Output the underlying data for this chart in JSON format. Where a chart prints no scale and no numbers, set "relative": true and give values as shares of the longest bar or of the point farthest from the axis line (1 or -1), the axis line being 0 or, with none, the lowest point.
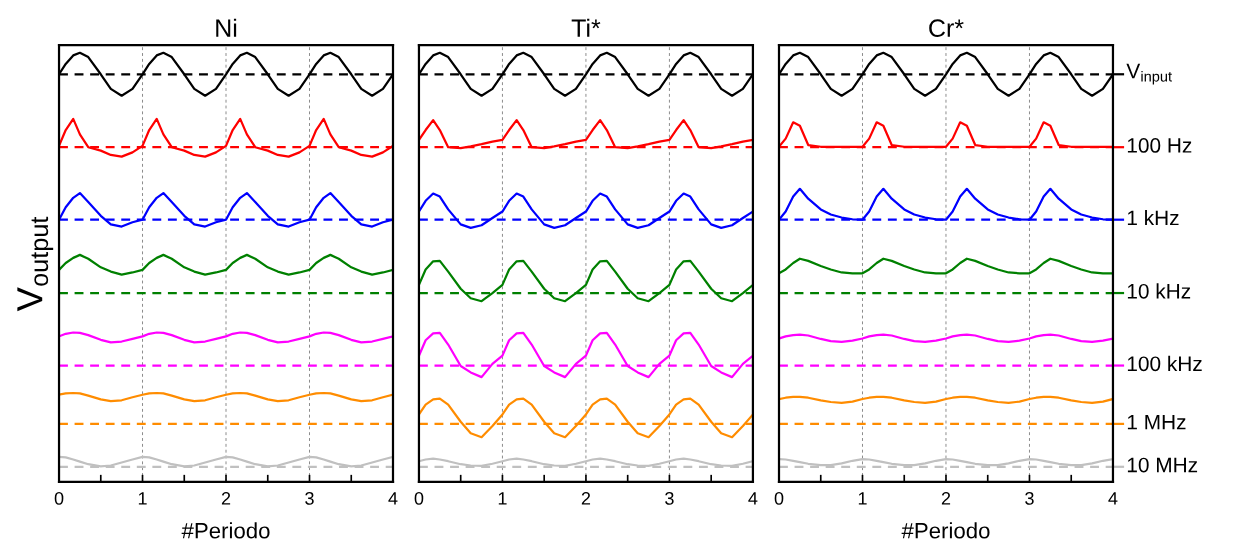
{
  "chart_data": [
    {
      "type": "line",
      "title": "Ni",
      "xlabel": "#Periodo",
      "ylabel": "V$_{output}$",
      "relative": true,
      "grid": "x",
      "tick_labels": "x",
      "line_style": "solid",
      "marker": "none",
      "xlim": [
        0,
        4
      ],
      "xticks": [
        0,
        {
          "value": 0.5,
          "label": null
        },
        1,
        {
          "value": 1.5,
          "label": null
        },
        2,
        {
          "value": 2.5,
          "label": null
        },
        3,
        {
          "value": 3.5,
          "label": null
        },
        4
      ],
      "x": [
        0,
        0.08,
        0.17,
        0.25,
        0.35,
        0.5,
        0.62,
        0.75,
        0.88,
        1,
        1.08,
        1.17,
        1.25,
        1.35,
        1.5,
        1.62,
        1.75,
        1.88,
        2,
        2.08,
        2.17,
        2.25,
        2.35,
        2.5,
        2.62,
        2.75,
        2.88,
        3,
        3.08,
        3.17,
        3.25,
        3.35,
        3.5,
        3.62,
        3.75,
        3.88,
        4
      ],
      "series": [
        {
          "color": "#000000",
          "values": [
            0.95,
            0.974,
            0.994,
            1.0,
            0.99,
            0.95,
            0.916,
            0.9,
            0.916,
            0.95,
            0.974,
            0.994,
            1.0,
            0.99,
            0.95,
            0.916,
            0.9,
            0.916,
            0.95,
            0.974,
            0.994,
            1.0,
            0.99,
            0.95,
            0.916,
            0.9,
            0.916,
            0.95,
            0.974,
            0.994,
            1.0,
            0.99,
            0.95,
            0.916,
            0.9,
            0.916,
            0.95
          ]
        },
        {
          "color": "#ff0000",
          "values": [
            0.783,
            0.82,
            0.846,
            0.81,
            0.78,
            0.772,
            0.762,
            0.758,
            0.768,
            0.783,
            0.82,
            0.846,
            0.81,
            0.78,
            0.772,
            0.762,
            0.758,
            0.768,
            0.783,
            0.82,
            0.846,
            0.81,
            0.78,
            0.772,
            0.762,
            0.758,
            0.768,
            0.783,
            0.82,
            0.846,
            0.81,
            0.78,
            0.772,
            0.762,
            0.758,
            0.768,
            0.783
          ]
        },
        {
          "color": "#0000ff",
          "values": [
            0.611,
            0.64,
            0.662,
            0.673,
            0.652,
            0.62,
            0.6,
            0.595,
            0.605,
            0.611,
            0.64,
            0.662,
            0.673,
            0.652,
            0.62,
            0.6,
            0.595,
            0.605,
            0.611,
            0.64,
            0.662,
            0.673,
            0.652,
            0.62,
            0.6,
            0.595,
            0.605,
            0.611,
            0.64,
            0.662,
            0.673,
            0.652,
            0.62,
            0.6,
            0.595,
            0.605,
            0.611
          ]
        },
        {
          "color": "#008000",
          "values": [
            0.494,
            0.51,
            0.522,
            0.529,
            0.52,
            0.5,
            0.49,
            0.483,
            0.488,
            0.494,
            0.51,
            0.522,
            0.529,
            0.52,
            0.5,
            0.49,
            0.483,
            0.488,
            0.494,
            0.51,
            0.522,
            0.529,
            0.52,
            0.5,
            0.49,
            0.483,
            0.488,
            0.494,
            0.51,
            0.522,
            0.529,
            0.52,
            0.5,
            0.49,
            0.483,
            0.488,
            0.494
          ]
        },
        {
          "color": "#ff00ff",
          "values": [
            0.339,
            0.345,
            0.348,
            0.347,
            0.342,
            0.331,
            0.325,
            0.327,
            0.333,
            0.339,
            0.345,
            0.348,
            0.347,
            0.342,
            0.331,
            0.325,
            0.327,
            0.333,
            0.339,
            0.345,
            0.348,
            0.347,
            0.342,
            0.331,
            0.325,
            0.327,
            0.333,
            0.339,
            0.345,
            0.348,
            0.347,
            0.342,
            0.331,
            0.325,
            0.327,
            0.333,
            0.339
          ]
        },
        {
          "color": "#ff8c00",
          "values": [
            0.203,
            0.206,
            0.207,
            0.206,
            0.201,
            0.192,
            0.188,
            0.19,
            0.197,
            0.203,
            0.206,
            0.207,
            0.206,
            0.201,
            0.192,
            0.188,
            0.19,
            0.197,
            0.203,
            0.206,
            0.207,
            0.206,
            0.201,
            0.192,
            0.188,
            0.19,
            0.197,
            0.203,
            0.206,
            0.207,
            0.206,
            0.201,
            0.192,
            0.188,
            0.19,
            0.197,
            0.203
          ]
        },
        {
          "color": "#c0c0c0",
          "values": [
            0.058,
            0.057,
            0.052,
            0.047,
            0.041,
            0.036,
            0.038,
            0.045,
            0.052,
            0.058,
            0.057,
            0.052,
            0.047,
            0.041,
            0.036,
            0.038,
            0.045,
            0.052,
            0.058,
            0.057,
            0.052,
            0.047,
            0.041,
            0.036,
            0.038,
            0.045,
            0.052,
            0.058,
            0.057,
            0.052,
            0.047,
            0.041,
            0.036,
            0.038,
            0.045,
            0.052,
            0.058
          ]
        }
      ],
      "ref_lines": [
        {
          "axis": "y",
          "value": 0.95,
          "color": "#000000",
          "line_style": "dashed"
        },
        {
          "axis": "y",
          "value": 0.78,
          "color": "#ff0000",
          "line_style": "dashed"
        },
        {
          "axis": "y",
          "value": 0.611,
          "color": "#0000ff",
          "line_style": "dashed"
        },
        {
          "axis": "y",
          "value": 0.44,
          "color": "#008000",
          "line_style": "dashed"
        },
        {
          "axis": "y",
          "value": 0.271,
          "color": "#ff00ff",
          "line_style": "dashed"
        },
        {
          "axis": "y",
          "value": 0.135,
          "color": "#ff8c00",
          "line_style": "dashed"
        },
        {
          "axis": "y",
          "value": 0.035,
          "color": "#c0c0c0",
          "line_style": "dashed"
        }
      ]
    },
    {
      "type": "line",
      "title": "Ti*",
      "relative": true,
      "grid": "x",
      "tick_labels": "x",
      "line_style": "solid",
      "marker": "none",
      "xlim": [
        0,
        4
      ],
      "xticks": [
        0,
        {
          "value": 0.5,
          "label": null
        },
        1,
        {
          "value": 1.5,
          "label": null
        },
        2,
        {
          "value": 2.5,
          "label": null
        },
        3,
        {
          "value": 3.5,
          "label": null
        },
        4
      ],
      "x": [
        0,
        0.08,
        0.17,
        0.25,
        0.35,
        0.5,
        0.62,
        0.75,
        0.88,
        1,
        1.08,
        1.17,
        1.25,
        1.35,
        1.5,
        1.62,
        1.75,
        1.88,
        2,
        2.08,
        2.17,
        2.25,
        2.35,
        2.5,
        2.62,
        2.75,
        2.88,
        3,
        3.08,
        3.17,
        3.25,
        3.35,
        3.5,
        3.62,
        3.75,
        3.88,
        4
      ],
      "series": [
        {
          "color": "#000000",
          "values": [
            0.95,
            0.974,
            0.994,
            1.0,
            0.99,
            0.95,
            0.916,
            0.9,
            0.916,
            0.95,
            0.974,
            0.994,
            1.0,
            0.99,
            0.95,
            0.916,
            0.9,
            0.916,
            0.95,
            0.974,
            0.994,
            1.0,
            0.99,
            0.95,
            0.916,
            0.9,
            0.916,
            0.95,
            0.974,
            0.994,
            1.0,
            0.99,
            0.95,
            0.916,
            0.9,
            0.916,
            0.95
          ]
        },
        {
          "color": "#ff0000",
          "values": [
            0.797,
            0.82,
            0.843,
            0.82,
            0.78,
            0.778,
            0.782,
            0.787,
            0.793,
            0.797,
            0.82,
            0.843,
            0.82,
            0.78,
            0.778,
            0.782,
            0.787,
            0.793,
            0.797,
            0.82,
            0.843,
            0.82,
            0.78,
            0.778,
            0.782,
            0.787,
            0.793,
            0.797,
            0.82,
            0.843,
            0.82,
            0.78,
            0.778,
            0.782,
            0.787,
            0.793,
            0.797
          ]
        },
        {
          "color": "#0000ff",
          "values": [
            0.63,
            0.655,
            0.672,
            0.665,
            0.635,
            0.6,
            0.592,
            0.598,
            0.615,
            0.63,
            0.655,
            0.672,
            0.665,
            0.635,
            0.6,
            0.592,
            0.598,
            0.615,
            0.63,
            0.655,
            0.672,
            0.665,
            0.635,
            0.6,
            0.592,
            0.598,
            0.615,
            0.63,
            0.655,
            0.672,
            0.665,
            0.635,
            0.6,
            0.592,
            0.598,
            0.615,
            0.63
          ]
        },
        {
          "color": "#008000",
          "values": [
            0.459,
            0.495,
            0.514,
            0.515,
            0.49,
            0.45,
            0.428,
            0.421,
            0.44,
            0.459,
            0.495,
            0.514,
            0.515,
            0.49,
            0.45,
            0.428,
            0.421,
            0.44,
            0.459,
            0.495,
            0.514,
            0.515,
            0.49,
            0.45,
            0.428,
            0.421,
            0.44,
            0.459,
            0.495,
            0.514,
            0.515,
            0.49,
            0.45,
            0.428,
            0.421,
            0.44,
            0.459
          ]
        },
        {
          "color": "#ff00ff",
          "values": [
            0.294,
            0.33,
            0.346,
            0.347,
            0.32,
            0.27,
            0.255,
            0.244,
            0.275,
            0.294,
            0.33,
            0.346,
            0.347,
            0.32,
            0.27,
            0.255,
            0.244,
            0.275,
            0.294,
            0.33,
            0.346,
            0.347,
            0.32,
            0.27,
            0.255,
            0.244,
            0.275,
            0.294,
            0.33,
            0.346,
            0.347,
            0.32,
            0.27,
            0.255,
            0.244,
            0.275,
            0.294
          ]
        },
        {
          "color": "#ff8c00",
          "values": [
            0.157,
            0.18,
            0.192,
            0.194,
            0.18,
            0.14,
            0.113,
            0.104,
            0.13,
            0.157,
            0.18,
            0.192,
            0.194,
            0.18,
            0.14,
            0.113,
            0.104,
            0.13,
            0.157,
            0.18,
            0.192,
            0.194,
            0.18,
            0.14,
            0.113,
            0.104,
            0.13,
            0.157,
            0.18,
            0.192,
            0.194,
            0.18,
            0.14,
            0.113,
            0.104,
            0.13,
            0.157
          ]
        },
        {
          "color": "#c0c0c0",
          "values": [
            0.048,
            0.052,
            0.054,
            0.052,
            0.048,
            0.041,
            0.038,
            0.037,
            0.042,
            0.048,
            0.052,
            0.054,
            0.052,
            0.048,
            0.041,
            0.038,
            0.037,
            0.042,
            0.048,
            0.052,
            0.054,
            0.052,
            0.048,
            0.041,
            0.038,
            0.037,
            0.042,
            0.048,
            0.052,
            0.054,
            0.052,
            0.048,
            0.041,
            0.038,
            0.037,
            0.042,
            0.048
          ]
        }
      ],
      "ref_lines": [
        {
          "axis": "y",
          "value": 0.95,
          "color": "#000000",
          "line_style": "dashed"
        },
        {
          "axis": "y",
          "value": 0.78,
          "color": "#ff0000",
          "line_style": "dashed"
        },
        {
          "axis": "y",
          "value": 0.611,
          "color": "#0000ff",
          "line_style": "dashed"
        },
        {
          "axis": "y",
          "value": 0.44,
          "color": "#008000",
          "line_style": "dashed"
        },
        {
          "axis": "y",
          "value": 0.271,
          "color": "#ff00ff",
          "line_style": "dashed"
        },
        {
          "axis": "y",
          "value": 0.135,
          "color": "#ff8c00",
          "line_style": "dashed"
        },
        {
          "axis": "y",
          "value": 0.035,
          "color": "#c0c0c0",
          "line_style": "dashed"
        }
      ]
    },
    {
      "type": "line",
      "title": "Cr*",
      "xlabel": "#Periodo",
      "relative": true,
      "legend": "right",
      "grid": "x",
      "tick_labels": "x",
      "line_style": "solid",
      "marker": "none",
      "xlim": [
        0,
        4
      ],
      "xticks": [
        0,
        {
          "value": 0.5,
          "label": null
        },
        1,
        {
          "value": 1.5,
          "label": null
        },
        2,
        {
          "value": 2.5,
          "label": null
        },
        3,
        {
          "value": 3.5,
          "label": null
        },
        4
      ],
      "x": [
        0,
        0.08,
        0.17,
        0.25,
        0.35,
        0.5,
        0.62,
        0.75,
        0.88,
        1,
        1.08,
        1.17,
        1.25,
        1.35,
        1.5,
        1.62,
        1.75,
        1.88,
        2,
        2.08,
        2.17,
        2.25,
        2.35,
        2.5,
        2.62,
        2.75,
        2.88,
        3,
        3.08,
        3.17,
        3.25,
        3.35,
        3.5,
        3.62,
        3.75,
        3.88,
        4
      ],
      "series": [
        {
          "name": "V$_{input}$",
          "color": "#000000",
          "values": [
            0.95,
            0.974,
            0.994,
            1.0,
            0.99,
            0.95,
            0.916,
            0.9,
            0.916,
            0.95,
            0.974,
            0.994,
            1.0,
            0.99,
            0.95,
            0.916,
            0.9,
            0.916,
            0.95,
            0.974,
            0.994,
            1.0,
            0.99,
            0.95,
            0.916,
            0.9,
            0.916,
            0.95,
            0.974,
            0.994,
            1.0,
            0.99,
            0.95,
            0.916,
            0.9,
            0.916,
            0.95
          ]
        },
        {
          "name": "100 Hz",
          "color": "#ff0000",
          "values": [
            0.781,
            0.8,
            0.838,
            0.83,
            0.785,
            0.781,
            0.781,
            0.781,
            0.781,
            0.781,
            0.8,
            0.838,
            0.83,
            0.785,
            0.781,
            0.781,
            0.781,
            0.781,
            0.781,
            0.8,
            0.838,
            0.83,
            0.785,
            0.781,
            0.781,
            0.781,
            0.781,
            0.781,
            0.8,
            0.838,
            0.83,
            0.785,
            0.781,
            0.781,
            0.781,
            0.781,
            0.781
          ]
        },
        {
          "name": "1 kHz",
          "color": "#0000ff",
          "values": [
            0.611,
            0.63,
            0.665,
            0.683,
            0.66,
            0.635,
            0.623,
            0.616,
            0.612,
            0.611,
            0.63,
            0.665,
            0.683,
            0.66,
            0.635,
            0.623,
            0.616,
            0.612,
            0.611,
            0.63,
            0.665,
            0.683,
            0.66,
            0.635,
            0.623,
            0.616,
            0.612,
            0.611,
            0.63,
            0.665,
            0.683,
            0.66,
            0.635,
            0.623,
            0.616,
            0.612,
            0.611
          ]
        },
        {
          "name": "10 kHz",
          "color": "#008000",
          "values": [
            0.486,
            0.495,
            0.51,
            0.52,
            0.515,
            0.503,
            0.495,
            0.488,
            0.486,
            0.486,
            0.495,
            0.51,
            0.52,
            0.515,
            0.503,
            0.495,
            0.488,
            0.486,
            0.486,
            0.495,
            0.51,
            0.52,
            0.515,
            0.503,
            0.495,
            0.488,
            0.486,
            0.486,
            0.495,
            0.51,
            0.52,
            0.515,
            0.503,
            0.495,
            0.488,
            0.486,
            0.486
          ]
        },
        {
          "name": "100 kHz",
          "color": "#ff00ff",
          "values": [
            0.334,
            0.339,
            0.342,
            0.343,
            0.341,
            0.333,
            0.328,
            0.326,
            0.329,
            0.334,
            0.339,
            0.342,
            0.343,
            0.341,
            0.333,
            0.328,
            0.326,
            0.329,
            0.334,
            0.339,
            0.342,
            0.343,
            0.341,
            0.333,
            0.328,
            0.326,
            0.329,
            0.334,
            0.339,
            0.342,
            0.343,
            0.341,
            0.333,
            0.328,
            0.326,
            0.329,
            0.334
          ]
        },
        {
          "name": "1 MHz",
          "color": "#ff8c00",
          "values": [
            0.193,
            0.196,
            0.198,
            0.198,
            0.196,
            0.19,
            0.186,
            0.184,
            0.187,
            0.193,
            0.196,
            0.198,
            0.198,
            0.196,
            0.19,
            0.186,
            0.184,
            0.187,
            0.193,
            0.196,
            0.198,
            0.198,
            0.196,
            0.19,
            0.186,
            0.184,
            0.187,
            0.193,
            0.196,
            0.198,
            0.198,
            0.196,
            0.19,
            0.186,
            0.184,
            0.187,
            0.193
          ]
        },
        {
          "name": "10 MHz",
          "color": "#c0c0c0",
          "values": [
            0.053,
            0.052,
            0.049,
            0.046,
            0.042,
            0.039,
            0.039,
            0.043,
            0.049,
            0.053,
            0.052,
            0.049,
            0.046,
            0.042,
            0.039,
            0.039,
            0.043,
            0.049,
            0.053,
            0.052,
            0.049,
            0.046,
            0.042,
            0.039,
            0.039,
            0.043,
            0.049,
            0.053,
            0.052,
            0.049,
            0.046,
            0.042,
            0.039,
            0.039,
            0.043,
            0.049,
            0.053
          ]
        }
      ],
      "ref_lines": [
        {
          "axis": "y",
          "value": 0.95,
          "color": "#000000",
          "line_style": "dashed"
        },
        {
          "axis": "y",
          "value": 0.78,
          "color": "#ff0000",
          "line_style": "dashed"
        },
        {
          "axis": "y",
          "value": 0.611,
          "color": "#0000ff",
          "line_style": "dashed"
        },
        {
          "axis": "y",
          "value": 0.44,
          "color": "#008000",
          "line_style": "dashed"
        },
        {
          "axis": "y",
          "value": 0.271,
          "color": "#ff00ff",
          "line_style": "dashed"
        },
        {
          "axis": "y",
          "value": 0.135,
          "color": "#ff8c00",
          "line_style": "dashed"
        },
        {
          "axis": "y",
          "value": 0.035,
          "color": "#c0c0c0",
          "line_style": "dashed"
        }
      ]
    }
  ]
}
